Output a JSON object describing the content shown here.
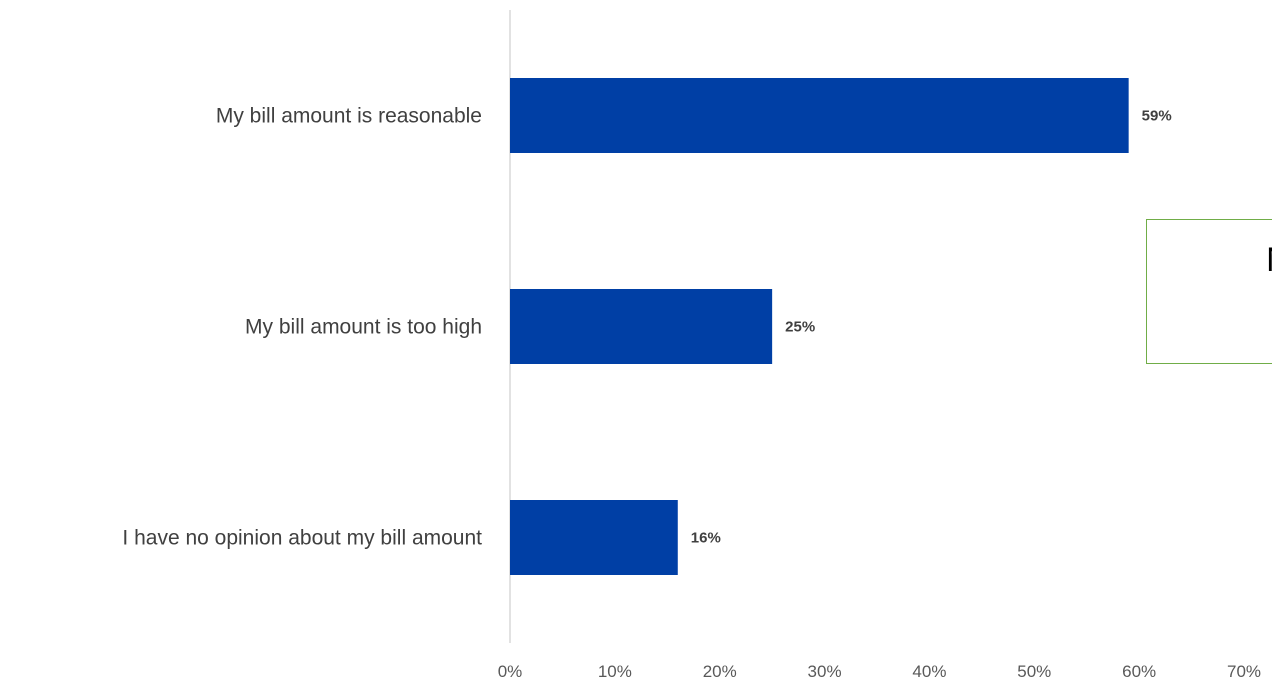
{
  "chart_data": {
    "type": "bar",
    "orientation": "horizontal",
    "categories": [
      "My bill amount is reasonable",
      "My bill amount is too high",
      "I have no opinion about my bill amount"
    ],
    "values": [
      59,
      25,
      16
    ],
    "value_labels": [
      "59%",
      "25%",
      "16%"
    ],
    "xlim": [
      0,
      70
    ],
    "x_ticks": [
      "0%",
      "10%",
      "20%",
      "30%",
      "40%",
      "50%",
      "60%",
      "70%"
    ],
    "bar_color": "#003fa5",
    "grid": false
  },
  "callout": {
    "text": "Near\nth",
    "border_color": "#70ad47"
  }
}
